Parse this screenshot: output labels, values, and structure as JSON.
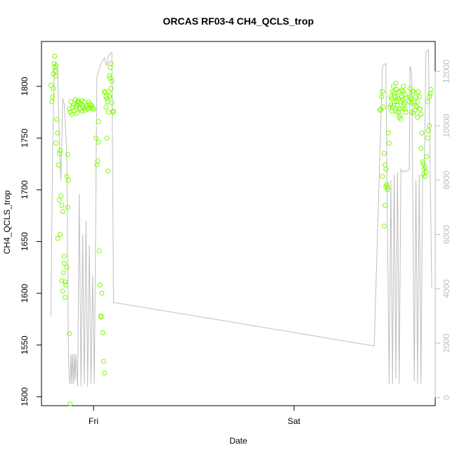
{
  "chart_data": {
    "type": "scatter",
    "title": "ORCAS RF03-4 CH4_QCLS_trop",
    "xlabel": "Date",
    "ylabel": "CH4_QCLS_trop",
    "x_unit": "hours from Thu 00:00",
    "xlim": [
      17.77,
      64.91
    ],
    "x_ticks": [
      {
        "value": 24,
        "label": "Fri"
      },
      {
        "value": 48,
        "label": "Sat"
      }
    ],
    "ylim": [
      1491.4,
      1843.3
    ],
    "y_ticks": [
      1500,
      1550,
      1600,
      1650,
      1700,
      1750,
      1800
    ],
    "y2lim": [
      -300,
      13100
    ],
    "y2_ticks": [
      0,
      2000,
      4000,
      6000,
      8000,
      10000,
      12000
    ],
    "grid": false,
    "series": [
      {
        "kind": "points",
        "axis": "left",
        "color": "#7cfc00",
        "points": [
          [
            18.9,
            1801
          ],
          [
            19.0,
            1785
          ],
          [
            19.1,
            1790
          ],
          [
            19.2,
            1798
          ],
          [
            19.3,
            1822
          ],
          [
            19.35,
            1829
          ],
          [
            19.4,
            1815
          ],
          [
            19.45,
            1810
          ],
          [
            19.5,
            1820
          ],
          [
            19.6,
            1768
          ],
          [
            19.7,
            1755
          ],
          [
            19.8,
            1724
          ],
          [
            19.9,
            1735
          ],
          [
            20.0,
            1738
          ],
          [
            20.1,
            1694
          ],
          [
            20.2,
            1685
          ],
          [
            20.3,
            1679
          ],
          [
            20.4,
            1620
          ],
          [
            20.5,
            1636
          ],
          [
            20.6,
            1596
          ],
          [
            20.7,
            1608
          ],
          [
            20.8,
            1625
          ],
          [
            20.9,
            1734
          ],
          [
            21.0,
            1709
          ],
          [
            21.1,
            1561
          ],
          [
            21.2,
            1493
          ],
          [
            19.2,
            1812
          ],
          [
            19.3,
            1818
          ],
          [
            19.5,
            1745
          ],
          [
            19.7,
            1653
          ],
          [
            19.9,
            1690
          ],
          [
            20.0,
            1657
          ],
          [
            20.2,
            1612
          ],
          [
            20.3,
            1602
          ],
          [
            20.5,
            1629
          ],
          [
            20.6,
            1611
          ],
          [
            20.8,
            1713
          ],
          [
            20.9,
            1683
          ],
          [
            21.1,
            1778
          ],
          [
            21.3,
            1785
          ],
          [
            21.5,
            1780
          ],
          [
            21.7,
            1776
          ],
          [
            21.9,
            1780
          ],
          [
            22.1,
            1785
          ],
          [
            22.3,
            1779
          ],
          [
            22.5,
            1783
          ],
          [
            22.7,
            1781
          ],
          [
            22.9,
            1785
          ],
          [
            23.1,
            1780
          ],
          [
            23.3,
            1778
          ],
          [
            23.5,
            1783
          ],
          [
            23.7,
            1782
          ],
          [
            23.9,
            1779
          ],
          [
            21.2,
            1775
          ],
          [
            21.4,
            1773
          ],
          [
            21.6,
            1782
          ],
          [
            21.8,
            1787
          ],
          [
            22.0,
            1782
          ],
          [
            22.2,
            1784
          ],
          [
            22.4,
            1778
          ],
          [
            22.6,
            1786
          ],
          [
            22.8,
            1779
          ],
          [
            23.0,
            1777
          ],
          [
            23.2,
            1782
          ],
          [
            23.4,
            1785
          ],
          [
            23.6,
            1779
          ],
          [
            23.8,
            1781
          ],
          [
            24.0,
            1778
          ],
          [
            22.0,
            1774
          ],
          [
            22.2,
            1786
          ],
          [
            22.6,
            1776
          ],
          [
            24.3,
            1750
          ],
          [
            24.4,
            1724
          ],
          [
            24.5,
            1728
          ],
          [
            24.6,
            1746
          ],
          [
            24.7,
            1641
          ],
          [
            24.8,
            1608
          ],
          [
            24.9,
            1577
          ],
          [
            25.0,
            1600
          ],
          [
            25.1,
            1562
          ],
          [
            25.2,
            1534
          ],
          [
            25.3,
            1523
          ],
          [
            24.6,
            1766
          ],
          [
            24.9,
            1578
          ],
          [
            25.4,
            1794
          ],
          [
            25.5,
            1790
          ],
          [
            25.6,
            1788
          ],
          [
            25.7,
            1785
          ],
          [
            25.8,
            1795
          ],
          [
            25.9,
            1810
          ],
          [
            26.0,
            1818
          ],
          [
            26.1,
            1822
          ],
          [
            26.2,
            1805
          ],
          [
            26.3,
            1775
          ],
          [
            26.4,
            1776
          ],
          [
            25.5,
            1780
          ],
          [
            25.6,
            1750
          ],
          [
            25.7,
            1718
          ],
          [
            25.8,
            1775
          ],
          [
            25.9,
            1790
          ],
          [
            26.0,
            1808
          ],
          [
            26.1,
            1798
          ],
          [
            26.2,
            1784
          ],
          [
            25.3,
            1795
          ],
          [
            58.3,
            1777
          ],
          [
            58.4,
            1778
          ],
          [
            58.5,
            1790
          ],
          [
            58.6,
            1795
          ],
          [
            58.7,
            1780
          ],
          [
            58.8,
            1735
          ],
          [
            58.9,
            1724
          ],
          [
            59.0,
            1720
          ],
          [
            59.1,
            1705
          ],
          [
            59.2,
            1700
          ],
          [
            59.3,
            1755
          ],
          [
            59.4,
            1745
          ],
          [
            58.6,
            1713
          ],
          [
            58.8,
            1665
          ],
          [
            58.9,
            1685
          ],
          [
            59.0,
            1703
          ],
          [
            59.1,
            1705
          ],
          [
            59.2,
            1702
          ],
          [
            59.5,
            1780
          ],
          [
            59.6,
            1790
          ],
          [
            59.7,
            1788
          ],
          [
            59.8,
            1795
          ],
          [
            59.9,
            1800
          ],
          [
            60.0,
            1785
          ],
          [
            60.1,
            1790
          ],
          [
            60.2,
            1803
          ],
          [
            60.3,
            1797
          ],
          [
            60.4,
            1782
          ],
          [
            60.5,
            1775
          ],
          [
            60.6,
            1770
          ],
          [
            60.7,
            1778
          ],
          [
            60.8,
            1785
          ],
          [
            60.9,
            1790
          ],
          [
            61.0,
            1787
          ],
          [
            61.1,
            1795
          ],
          [
            61.2,
            1782
          ],
          [
            61.3,
            1778
          ],
          [
            61.4,
            1789
          ],
          [
            59.6,
            1782
          ],
          [
            59.8,
            1780
          ],
          [
            60.0,
            1794
          ],
          [
            60.2,
            1776
          ],
          [
            60.4,
            1790
          ],
          [
            60.6,
            1795
          ],
          [
            60.8,
            1768
          ],
          [
            61.0,
            1779
          ],
          [
            61.2,
            1784
          ],
          [
            61.4,
            1775
          ],
          [
            60.1,
            1778
          ],
          [
            60.3,
            1785
          ],
          [
            60.5,
            1788
          ],
          [
            60.7,
            1772
          ],
          [
            60.9,
            1796
          ],
          [
            61.1,
            1800
          ],
          [
            61.3,
            1792
          ],
          [
            59.7,
            1776
          ],
          [
            61.8,
            1785
          ],
          [
            61.9,
            1790
          ],
          [
            62.0,
            1788
          ],
          [
            62.1,
            1775
          ],
          [
            62.2,
            1795
          ],
          [
            62.3,
            1795
          ],
          [
            62.4,
            1785
          ],
          [
            62.5,
            1777
          ],
          [
            62.6,
            1790
          ],
          [
            62.7,
            1780
          ],
          [
            62.8,
            1785
          ],
          [
            62.9,
            1795
          ],
          [
            63.0,
            1790
          ],
          [
            63.1,
            1778
          ],
          [
            63.2,
            1773
          ],
          [
            63.3,
            1755
          ],
          [
            63.4,
            1727
          ],
          [
            63.5,
            1725
          ],
          [
            63.6,
            1720
          ],
          [
            63.7,
            1713
          ],
          [
            63.8,
            1717
          ],
          [
            63.9,
            1732
          ],
          [
            64.0,
            1750
          ],
          [
            64.1,
            1757
          ],
          [
            64.2,
            1790
          ],
          [
            64.3,
            1793
          ],
          [
            64.4,
            1797
          ],
          [
            61.9,
            1798
          ],
          [
            62.1,
            1784
          ],
          [
            62.3,
            1774
          ],
          [
            62.6,
            1781
          ],
          [
            62.8,
            1770
          ],
          [
            63.5,
            1715
          ],
          [
            63.7,
            1722
          ],
          [
            64.0,
            1785
          ],
          [
            64.2,
            1762
          ],
          [
            63.2,
            1740
          ]
        ]
      },
      {
        "kind": "line",
        "axis": "right",
        "color": "#bebebe",
        "points": [
          [
            18.9,
            3000
          ],
          [
            19.1,
            9000
          ],
          [
            19.3,
            12200
          ],
          [
            19.5,
            12300
          ],
          [
            19.7,
            12250
          ],
          [
            19.9,
            9500
          ],
          [
            20.1,
            8000
          ],
          [
            20.3,
            11000
          ],
          [
            20.5,
            10800
          ],
          [
            20.8,
            9000
          ],
          [
            21.0,
            1500
          ],
          [
            21.1,
            700
          ],
          [
            21.2,
            500
          ],
          [
            21.3,
            1600
          ],
          [
            21.4,
            500
          ],
          [
            21.5,
            1600
          ],
          [
            21.6,
            500
          ],
          [
            21.7,
            1600
          ],
          [
            21.8,
            600
          ],
          [
            21.9,
            1600
          ],
          [
            22.1,
            400
          ],
          [
            22.3,
            7500
          ],
          [
            22.5,
            400
          ],
          [
            22.7,
            6000
          ],
          [
            22.9,
            500
          ],
          [
            23.1,
            6500
          ],
          [
            23.3,
            400
          ],
          [
            23.5,
            5600
          ],
          [
            23.7,
            500
          ],
          [
            23.9,
            4500
          ],
          [
            24.1,
            500
          ],
          [
            24.4,
            11800
          ],
          [
            24.9,
            12300
          ],
          [
            25.3,
            12500
          ],
          [
            25.6,
            12200
          ],
          [
            25.8,
            12600
          ],
          [
            26.2,
            12700
          ],
          [
            26.4,
            3500
          ],
          [
            57.6,
            1900
          ],
          [
            58.6,
            12200
          ],
          [
            59.0,
            12300
          ],
          [
            59.2,
            6000
          ],
          [
            59.4,
            500
          ],
          [
            59.6,
            8000
          ],
          [
            59.8,
            500
          ],
          [
            60.0,
            8200
          ],
          [
            60.2,
            700
          ],
          [
            60.4,
            8300
          ],
          [
            60.6,
            500
          ],
          [
            60.8,
            8400
          ],
          [
            61.0,
            8300
          ],
          [
            61.2,
            8350
          ],
          [
            61.4,
            8300
          ],
          [
            61.8,
            8400
          ],
          [
            61.9,
            12200
          ],
          [
            62.1,
            11900
          ],
          [
            62.2,
            8500
          ],
          [
            62.4,
            600
          ],
          [
            62.6,
            8000
          ],
          [
            62.8,
            500
          ],
          [
            63.0,
            8200
          ],
          [
            63.2,
            500
          ],
          [
            63.4,
            8200
          ],
          [
            63.6,
            8200
          ],
          [
            63.8,
            12700
          ],
          [
            64.1,
            12800
          ],
          [
            64.3,
            8500
          ],
          [
            64.5,
            4000
          ]
        ]
      }
    ]
  }
}
